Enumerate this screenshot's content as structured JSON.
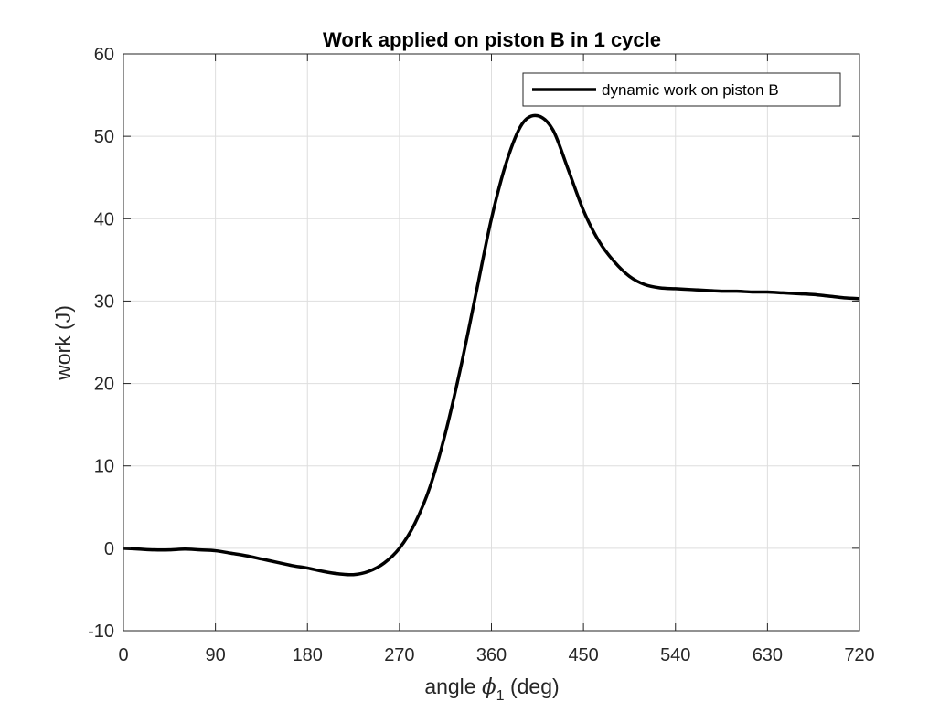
{
  "chart_data": {
    "type": "line",
    "title": "Work applied on piston B in 1 cycle",
    "xlabel": {
      "prefix": "angle ",
      "symbol": "ϕ",
      "subscript": "1",
      "suffix": " (deg)"
    },
    "ylabel": "work (J)",
    "xlim": [
      0,
      720
    ],
    "ylim": [
      -10,
      60
    ],
    "xticks": [
      0,
      90,
      180,
      270,
      360,
      450,
      540,
      630,
      720
    ],
    "yticks": [
      -10,
      0,
      10,
      20,
      30,
      40,
      50,
      60
    ],
    "grid": true,
    "legend": {
      "position": "top-right"
    },
    "series": [
      {
        "name": "dynamic work on piston B",
        "color": "#000000",
        "x": [
          0,
          15,
          30,
          45,
          60,
          75,
          90,
          105,
          120,
          135,
          150,
          165,
          180,
          195,
          210,
          225,
          240,
          255,
          270,
          285,
          300,
          315,
          330,
          345,
          360,
          375,
          390,
          405,
          420,
          435,
          450,
          465,
          480,
          495,
          510,
          525,
          540,
          555,
          570,
          585,
          600,
          615,
          630,
          645,
          660,
          675,
          690,
          705,
          720
        ],
        "y": [
          0.0,
          -0.1,
          -0.2,
          -0.2,
          -0.1,
          -0.2,
          -0.3,
          -0.6,
          -0.9,
          -1.3,
          -1.7,
          -2.1,
          -2.4,
          -2.8,
          -3.1,
          -3.2,
          -2.8,
          -1.8,
          0.0,
          3.0,
          7.5,
          14.0,
          22.0,
          31.0,
          40.0,
          47.0,
          51.5,
          52.5,
          50.8,
          46.0,
          41.0,
          37.3,
          34.8,
          33.0,
          32.0,
          31.6,
          31.5,
          31.4,
          31.3,
          31.2,
          31.2,
          31.1,
          31.1,
          31.0,
          30.9,
          30.8,
          30.6,
          30.4,
          30.3
        ]
      }
    ]
  }
}
